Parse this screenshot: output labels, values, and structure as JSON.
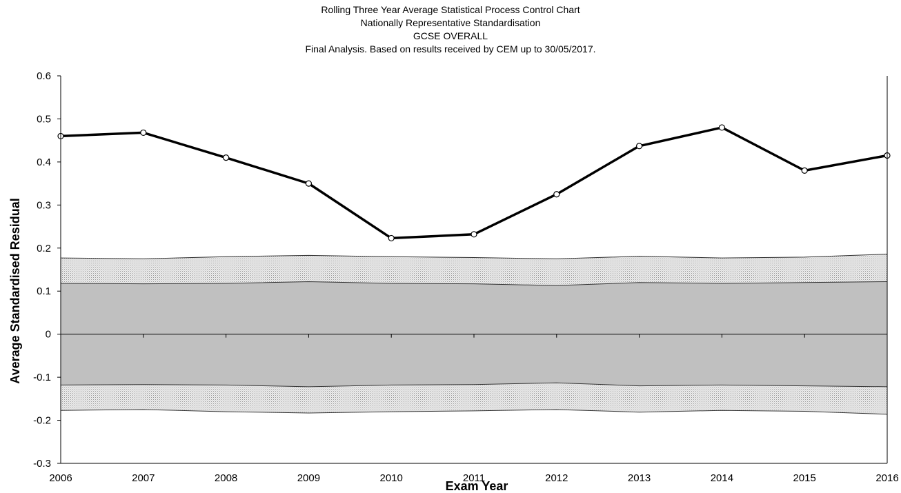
{
  "chart_data": {
    "type": "line",
    "title_lines": [
      "Rolling Three Year Average Statistical Process Control Chart",
      "Nationally Representative Standardisation",
      "GCSE OVERALL",
      "Final Analysis. Based on results received by CEM up to 30/05/2017."
    ],
    "xlabel": "Exam Year",
    "ylabel": "Average Standardised Residual",
    "x": [
      2006,
      2007,
      2008,
      2009,
      2010,
      2011,
      2012,
      2013,
      2014,
      2015,
      2016
    ],
    "x_tick_labels": [
      "2006",
      "2007",
      "2008",
      "2009",
      "2010",
      "2011",
      "2012",
      "2013",
      "2014",
      "2015",
      "2016"
    ],
    "y_tick_labels": [
      "0.6",
      "0.5",
      "0.4",
      "0.3",
      "0.2",
      "0.1",
      "0",
      "-0.1",
      "-0.2",
      "-0.3"
    ],
    "ylim": [
      -0.3,
      0.6
    ],
    "grid": false,
    "legend": "none",
    "series": [
      {
        "values": [
          0.46,
          0.468,
          0.41,
          0.35,
          0.223,
          0.232,
          0.325,
          0.437,
          0.48,
          0.38,
          0.415
        ]
      }
    ],
    "bands": {
      "outer_upper": [
        0.177,
        0.175,
        0.18,
        0.183,
        0.18,
        0.178,
        0.175,
        0.181,
        0.177,
        0.179,
        0.186
      ],
      "inner_upper": [
        0.118,
        0.117,
        0.118,
        0.122,
        0.118,
        0.117,
        0.113,
        0.12,
        0.118,
        0.12,
        0.122
      ],
      "inner_lower": [
        -0.118,
        -0.117,
        -0.118,
        -0.122,
        -0.118,
        -0.117,
        -0.113,
        -0.12,
        -0.118,
        -0.12,
        -0.122
      ],
      "outer_lower": [
        -0.177,
        -0.175,
        -0.18,
        -0.183,
        -0.18,
        -0.178,
        -0.175,
        -0.181,
        -0.177,
        -0.179,
        -0.186
      ]
    },
    "colors": {
      "line": "#000000",
      "marker_fill": "#ffffff",
      "inner_band": "#c0c0c0",
      "outer_band": "#e4e4e4",
      "band_edge": "#333333",
      "axis": "#000000"
    }
  }
}
